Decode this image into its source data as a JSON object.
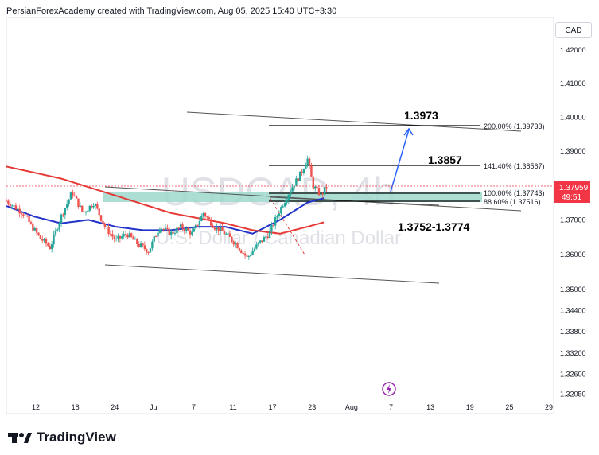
{
  "header": {
    "attribution": "PersianForexAcademy created with TradingView.com, Aug 05, 2025 15:40 UTC+3:30"
  },
  "currency_badge": "CAD",
  "watermark": {
    "symbol": "USDCAD, 4h",
    "name": "U.S. Dollar / Canadian Dollar"
  },
  "price_axis": {
    "ticks": [
      "1.42000",
      "1.41000",
      "1.40000",
      "1.39000",
      "1.38000",
      "1.37000",
      "1.36000",
      "1.35000",
      "1.34400",
      "1.33800",
      "1.33200",
      "1.32600",
      "1.32050"
    ],
    "current_price": "1.37959",
    "countdown": "49:51",
    "current_color": "#f23645"
  },
  "time_axis": {
    "ticks": [
      "12",
      "18",
      "24",
      "Jul",
      "7",
      "11",
      "17",
      "23",
      "Aug",
      "7",
      "13",
      "19",
      "25",
      "29"
    ]
  },
  "annotations": {
    "target_high": "1.3973",
    "target_mid": "1.3857",
    "zone": "1.3752-1.3774",
    "fib_200": "200.00% (1.39733)",
    "fib_141": "141.40% (1.38567)",
    "fib_100": "100.00% (1.37743)",
    "fib_886": "88.60% (1.37516)"
  },
  "colors": {
    "up_candle": "#26a69a",
    "down_candle": "#ef5350",
    "ma_fast": "#2233cc",
    "ma_slow": "#e53935",
    "zone_fill": "#9fd8cc",
    "projection_arrow": "#2962ff"
  },
  "brand": {
    "name": "TradingView"
  },
  "chart_data": {
    "type": "candlestick",
    "symbol": "USDCAD",
    "timeframe": "4h",
    "y_axis_scale": "log",
    "ylim": [
      1.3205,
      1.4245
    ],
    "series": [
      {
        "name": "USDCAD price",
        "kind": "candles",
        "approx_path": [
          [
            0,
            1.3755
          ],
          [
            0.03,
            1.372
          ],
          [
            0.06,
            1.365
          ],
          [
            0.08,
            1.362
          ],
          [
            0.1,
            1.371
          ],
          [
            0.12,
            1.378
          ],
          [
            0.14,
            1.372
          ],
          [
            0.16,
            1.375
          ],
          [
            0.18,
            1.368
          ],
          [
            0.2,
            1.364
          ],
          [
            0.22,
            1.366
          ],
          [
            0.24,
            1.363
          ],
          [
            0.26,
            1.361
          ],
          [
            0.28,
            1.368
          ],
          [
            0.3,
            1.366
          ],
          [
            0.32,
            1.368
          ],
          [
            0.34,
            1.366
          ],
          [
            0.36,
            1.372
          ],
          [
            0.38,
            1.368
          ],
          [
            0.4,
            1.366
          ],
          [
            0.42,
            1.363
          ],
          [
            0.44,
            1.359
          ],
          [
            0.46,
            1.363
          ],
          [
            0.48,
            1.366
          ],
          [
            0.5,
            1.373
          ],
          [
            0.52,
            1.379
          ],
          [
            0.54,
            1.384
          ],
          [
            0.55,
            1.388
          ],
          [
            0.56,
            1.38
          ],
          [
            0.575,
            1.377
          ],
          [
            0.585,
            1.3796
          ]
        ]
      },
      {
        "name": "fast moving average",
        "kind": "line",
        "approx_path": [
          [
            0,
            1.374
          ],
          [
            0.05,
            1.371
          ],
          [
            0.1,
            1.369
          ],
          [
            0.15,
            1.37
          ],
          [
            0.2,
            1.368
          ],
          [
            0.25,
            1.367
          ],
          [
            0.3,
            1.367
          ],
          [
            0.35,
            1.368
          ],
          [
            0.4,
            1.368
          ],
          [
            0.45,
            1.366
          ],
          [
            0.5,
            1.37
          ],
          [
            0.55,
            1.375
          ],
          [
            0.585,
            1.3765
          ]
        ]
      },
      {
        "name": "slow moving average",
        "kind": "line",
        "approx_path": [
          [
            0,
            1.3855
          ],
          [
            0.1,
            1.382
          ],
          [
            0.2,
            1.377
          ],
          [
            0.3,
            1.372
          ],
          [
            0.4,
            1.369
          ],
          [
            0.45,
            1.367
          ],
          [
            0.5,
            1.366
          ],
          [
            0.55,
            1.368
          ],
          [
            0.585,
            1.3695
          ]
        ]
      }
    ]
  }
}
